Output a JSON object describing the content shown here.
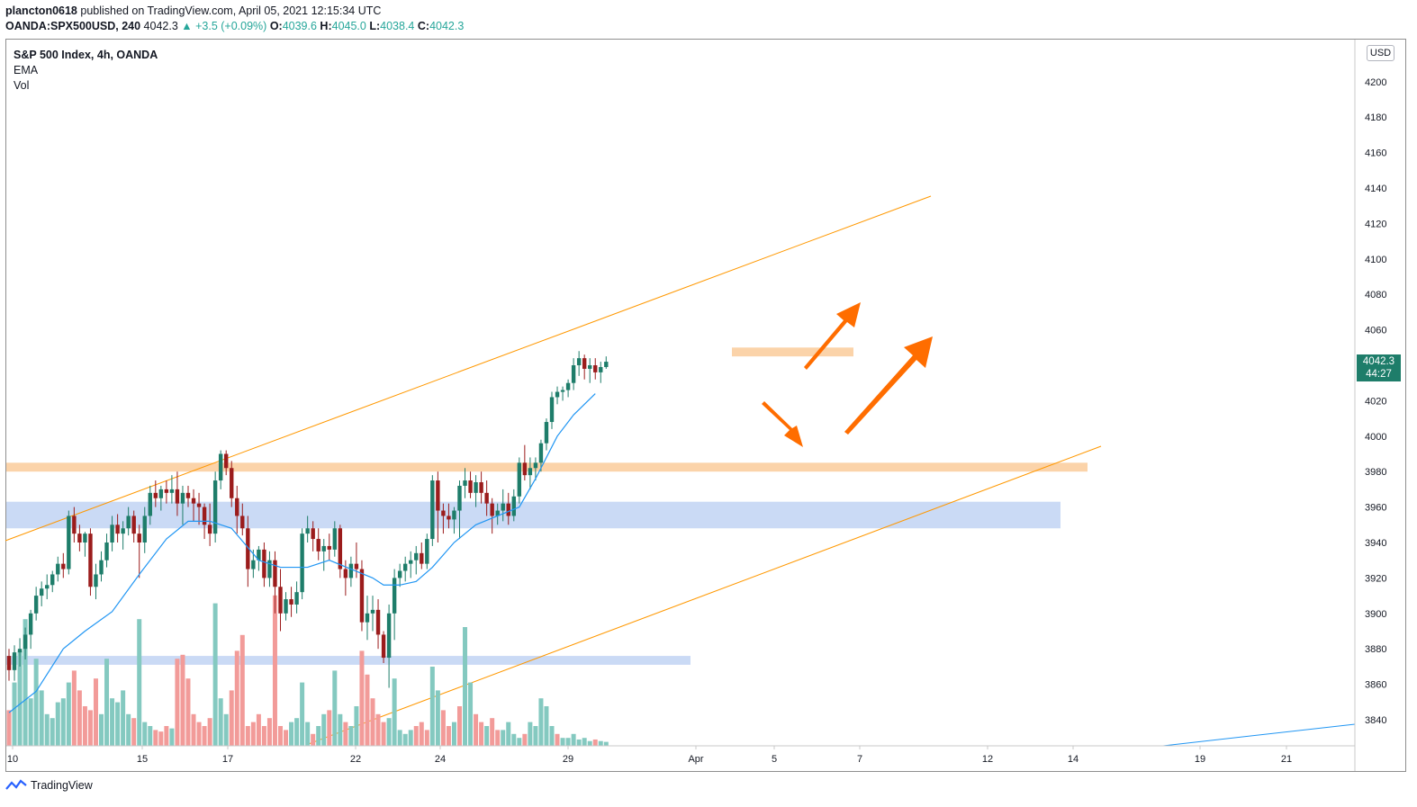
{
  "header": {
    "user": "plancton0618",
    "published_text": "published on TradingView.com, April 05, 2021 12:15:34 UTC",
    "symbol": "OANDA:SPX500USD, 240",
    "last": "4042.3",
    "change": "▲ +3.5 (+0.09%)",
    "o_label": "O:",
    "o": "4039.6",
    "h_label": "H:",
    "h": "4045.0",
    "l_label": "L:",
    "l": "4038.4",
    "c_label": "C:",
    "c": "4042.3"
  },
  "legend": {
    "title": "S&P 500 Index, 4h, OANDA",
    "ema": "EMA",
    "vol": "Vol"
  },
  "currency": "USD",
  "price_tag": {
    "price": "4042.3",
    "countdown": "44:27"
  },
  "footer": {
    "brand": "TradingView"
  },
  "colors": {
    "up": "#26a69a",
    "down": "#ef5350",
    "candle_up": "#1e7d6a",
    "candle_down": "#9b1c1c",
    "ema": "#2196f3",
    "trendline": "#ff9800",
    "arrow": "#ff6d00",
    "zone_orange": "#f9c48c",
    "zone_blue": "#adc6f0"
  },
  "chart_data": {
    "type": "candlestick",
    "ylim": [
      3830,
      4228
    ],
    "yticks": [
      3840,
      3860,
      3880,
      3900,
      3920,
      3940,
      3960,
      3980,
      4000,
      4020,
      4040,
      4060,
      4080,
      4100,
      4120,
      4140,
      4160,
      4180,
      4200
    ],
    "xticks": [
      "10",
      "15",
      "17",
      "22",
      "24",
      "29",
      "Apr",
      "5",
      "7",
      "12",
      "14",
      "19",
      "21"
    ],
    "ohlc": [
      [
        3876,
        3880,
        3862,
        3868
      ],
      [
        3868,
        3882,
        3862,
        3878
      ],
      [
        3878,
        3886,
        3870,
        3880
      ],
      [
        3880,
        3892,
        3874,
        3888
      ],
      [
        3888,
        3902,
        3880,
        3900
      ],
      [
        3900,
        3915,
        3896,
        3910
      ],
      [
        3910,
        3918,
        3904,
        3914
      ],
      [
        3914,
        3922,
        3908,
        3916
      ],
      [
        3916,
        3924,
        3912,
        3922
      ],
      [
        3922,
        3932,
        3918,
        3928
      ],
      [
        3928,
        3934,
        3920,
        3925
      ],
      [
        3925,
        3958,
        3922,
        3955
      ],
      [
        3955,
        3960,
        3940,
        3945
      ],
      [
        3945,
        3950,
        3935,
        3940
      ],
      [
        3940,
        3946,
        3932,
        3945
      ],
      [
        3945,
        3948,
        3910,
        3915
      ],
      [
        3915,
        3928,
        3908,
        3922
      ],
      [
        3922,
        3935,
        3918,
        3930
      ],
      [
        3930,
        3945,
        3926,
        3940
      ],
      [
        3940,
        3955,
        3935,
        3950
      ],
      [
        3950,
        3956,
        3940,
        3945
      ],
      [
        3945,
        3952,
        3936,
        3948
      ],
      [
        3948,
        3960,
        3944,
        3955
      ],
      [
        3955,
        3958,
        3940,
        3945
      ],
      [
        3945,
        3950,
        3920,
        3940
      ],
      [
        3940,
        3960,
        3934,
        3955
      ],
      [
        3955,
        3972,
        3950,
        3968
      ],
      [
        3968,
        3975,
        3960,
        3965
      ],
      [
        3965,
        3972,
        3958,
        3970
      ],
      [
        3970,
        3975,
        3962,
        3968
      ],
      [
        3968,
        3978,
        3962,
        3970
      ],
      [
        3970,
        3980,
        3955,
        3962
      ],
      [
        3962,
        3972,
        3950,
        3968
      ],
      [
        3968,
        3972,
        3960,
        3965
      ],
      [
        3965,
        3970,
        3952,
        3962
      ],
      [
        3962,
        3968,
        3950,
        3960
      ],
      [
        3960,
        3962,
        3942,
        3950
      ],
      [
        3950,
        3962,
        3938,
        3945
      ],
      [
        3945,
        3980,
        3940,
        3975
      ],
      [
        3975,
        3992,
        3970,
        3990
      ],
      [
        3990,
        3992,
        3978,
        3982
      ],
      [
        3982,
        3986,
        3960,
        3965
      ],
      [
        3965,
        3972,
        3945,
        3955
      ],
      [
        3955,
        3962,
        3944,
        3948
      ],
      [
        3948,
        3955,
        3915,
        3925
      ],
      [
        3925,
        3936,
        3920,
        3930
      ],
      [
        3930,
        3938,
        3924,
        3936
      ],
      [
        3936,
        3940,
        3915,
        3920
      ],
      [
        3920,
        3935,
        3915,
        3930
      ],
      [
        3930,
        3935,
        3900,
        3915
      ],
      [
        3915,
        3925,
        3890,
        3900
      ],
      [
        3900,
        3912,
        3896,
        3908
      ],
      [
        3908,
        3915,
        3898,
        3905
      ],
      [
        3905,
        3918,
        3900,
        3912
      ],
      [
        3912,
        3948,
        3908,
        3945
      ],
      [
        3945,
        3955,
        3940,
        3948
      ],
      [
        3948,
        3952,
        3935,
        3942
      ],
      [
        3942,
        3948,
        3930,
        3935
      ],
      [
        3935,
        3942,
        3924,
        3938
      ],
      [
        3938,
        3945,
        3930,
        3936
      ],
      [
        3936,
        3952,
        3932,
        3948
      ],
      [
        3948,
        3950,
        3920,
        3925
      ],
      [
        3925,
        3930,
        3910,
        3920
      ],
      [
        3920,
        3932,
        3915,
        3928
      ],
      [
        3928,
        3940,
        3920,
        3925
      ],
      [
        3925,
        3930,
        3890,
        3895
      ],
      [
        3895,
        3910,
        3885,
        3900
      ],
      [
        3900,
        3910,
        3890,
        3902
      ],
      [
        3902,
        3908,
        3880,
        3888
      ],
      [
        3888,
        3890,
        3872,
        3875
      ],
      [
        3875,
        3905,
        3858,
        3900
      ],
      [
        3900,
        3925,
        3885,
        3920
      ],
      [
        3920,
        3928,
        3915,
        3924
      ],
      [
        3924,
        3932,
        3918,
        3928
      ],
      [
        3928,
        3935,
        3920,
        3930
      ],
      [
        3930,
        3938,
        3922,
        3934
      ],
      [
        3934,
        3940,
        3925,
        3928
      ],
      [
        3928,
        3945,
        3925,
        3942
      ],
      [
        3942,
        3978,
        3938,
        3975
      ],
      [
        3975,
        3980,
        3940,
        3958
      ],
      [
        3958,
        3962,
        3945,
        3955
      ],
      [
        3955,
        3962,
        3948,
        3953
      ],
      [
        3953,
        3960,
        3945,
        3958
      ],
      [
        3958,
        3975,
        3942,
        3972
      ],
      [
        3972,
        3982,
        3965,
        3975
      ],
      [
        3975,
        3980,
        3965,
        3968
      ],
      [
        3968,
        3978,
        3960,
        3974
      ],
      [
        3974,
        3980,
        3962,
        3968
      ],
      [
        3968,
        3975,
        3955,
        3962
      ],
      [
        3962,
        3965,
        3945,
        3955
      ],
      [
        3955,
        3962,
        3950,
        3958
      ],
      [
        3958,
        3970,
        3952,
        3962
      ],
      [
        3962,
        3968,
        3950,
        3955
      ],
      [
        3955,
        3970,
        3952,
        3966
      ],
      [
        3966,
        3988,
        3962,
        3985
      ],
      [
        3985,
        3995,
        3975,
        3978
      ],
      [
        3978,
        3988,
        3970,
        3982
      ],
      [
        3982,
        3988,
        3975,
        3985
      ],
      [
        3985,
        3998,
        3980,
        3996
      ],
      [
        3996,
        4010,
        3992,
        4008
      ],
      [
        4008,
        4025,
        4004,
        4022
      ],
      [
        4022,
        4028,
        4018,
        4025
      ],
      [
        4025,
        4028,
        4020,
        4026
      ],
      [
        4026,
        4032,
        4022,
        4030
      ],
      [
        4030,
        4044,
        4026,
        4040
      ],
      [
        4040,
        4048,
        4034,
        4044
      ],
      [
        4044,
        4046,
        4032,
        4038
      ],
      [
        4038,
        4044,
        4030,
        4040
      ],
      [
        4040,
        4044,
        4032,
        4036
      ],
      [
        4036,
        4042,
        4030,
        4039
      ],
      [
        4039,
        4045,
        4038,
        4042
      ]
    ],
    "volume": [
      [
        45,
        1
      ],
      [
        80,
        0
      ],
      [
        120,
        0
      ],
      [
        160,
        0
      ],
      [
        60,
        0
      ],
      [
        110,
        0
      ],
      [
        70,
        0
      ],
      [
        40,
        0
      ],
      [
        35,
        0
      ],
      [
        55,
        0
      ],
      [
        60,
        0
      ],
      [
        80,
        0
      ],
      [
        95,
        1
      ],
      [
        70,
        1
      ],
      [
        50,
        1
      ],
      [
        45,
        1
      ],
      [
        85,
        1
      ],
      [
        40,
        0
      ],
      [
        110,
        0
      ],
      [
        60,
        0
      ],
      [
        55,
        0
      ],
      [
        70,
        0
      ],
      [
        40,
        0
      ],
      [
        35,
        1
      ],
      [
        160,
        0
      ],
      [
        30,
        0
      ],
      [
        25,
        0
      ],
      [
        20,
        1
      ],
      [
        18,
        1
      ],
      [
        25,
        1
      ],
      [
        22,
        0
      ],
      [
        110,
        1
      ],
      [
        115,
        1
      ],
      [
        85,
        1
      ],
      [
        40,
        1
      ],
      [
        30,
        1
      ],
      [
        25,
        1
      ],
      [
        35,
        1
      ],
      [
        180,
        0
      ],
      [
        60,
        0
      ],
      [
        40,
        0
      ],
      [
        70,
        1
      ],
      [
        120,
        1
      ],
      [
        140,
        1
      ],
      [
        25,
        1
      ],
      [
        30,
        1
      ],
      [
        40,
        1
      ],
      [
        25,
        1
      ],
      [
        35,
        1
      ],
      [
        190,
        1
      ],
      [
        25,
        1
      ],
      [
        20,
        1
      ],
      [
        30,
        0
      ],
      [
        35,
        0
      ],
      [
        80,
        0
      ],
      [
        30,
        0
      ],
      [
        15,
        1
      ],
      [
        25,
        0
      ],
      [
        40,
        0
      ],
      [
        45,
        1
      ],
      [
        95,
        0
      ],
      [
        40,
        0
      ],
      [
        30,
        1
      ],
      [
        25,
        0
      ],
      [
        50,
        0
      ],
      [
        120,
        1
      ],
      [
        90,
        1
      ],
      [
        60,
        1
      ],
      [
        40,
        1
      ],
      [
        30,
        1
      ],
      [
        35,
        0
      ],
      [
        85,
        0
      ],
      [
        20,
        0
      ],
      [
        15,
        0
      ],
      [
        20,
        0
      ],
      [
        25,
        1
      ],
      [
        30,
        1
      ],
      [
        20,
        1
      ],
      [
        100,
        0
      ],
      [
        70,
        0
      ],
      [
        45,
        1
      ],
      [
        25,
        1
      ],
      [
        30,
        0
      ],
      [
        50,
        1
      ],
      [
        150,
        0
      ],
      [
        80,
        0
      ],
      [
        40,
        1
      ],
      [
        30,
        1
      ],
      [
        25,
        0
      ],
      [
        35,
        1
      ],
      [
        20,
        1
      ],
      [
        20,
        0
      ],
      [
        30,
        0
      ],
      [
        15,
        0
      ],
      [
        10,
        0
      ],
      [
        15,
        1
      ],
      [
        30,
        0
      ],
      [
        25,
        0
      ],
      [
        60,
        0
      ],
      [
        50,
        0
      ],
      [
        25,
        0
      ],
      [
        15,
        1
      ],
      [
        10,
        0
      ],
      [
        10,
        0
      ],
      [
        15,
        0
      ],
      [
        8,
        0
      ],
      [
        10,
        0
      ],
      [
        6,
        0
      ],
      [
        8,
        1
      ],
      [
        6,
        0
      ],
      [
        5,
        0
      ]
    ],
    "ema": [
      [
        0,
        3844
      ],
      [
        5,
        3856
      ],
      [
        10,
        3880
      ],
      [
        14,
        3890
      ],
      [
        19,
        3901
      ],
      [
        24,
        3922
      ],
      [
        29,
        3942
      ],
      [
        33,
        3952
      ],
      [
        37,
        3952
      ],
      [
        41,
        3948
      ],
      [
        46,
        3930
      ],
      [
        50,
        3926
      ],
      [
        55,
        3926
      ],
      [
        59,
        3930
      ],
      [
        63,
        3925
      ],
      [
        67,
        3920
      ],
      [
        69,
        3916
      ],
      [
        72,
        3916
      ],
      [
        75,
        3918
      ],
      [
        78,
        3926
      ],
      [
        82,
        3940
      ],
      [
        86,
        3950
      ],
      [
        90,
        3955
      ],
      [
        94,
        3960
      ],
      [
        97,
        3976
      ],
      [
        101,
        4000
      ],
      [
        104,
        4012
      ],
      [
        108,
        4024
      ]
    ],
    "zones": [
      {
        "color": "orange",
        "y0": 3980,
        "y1": 3985,
        "x0": 0,
        "x1": 1201
      },
      {
        "color": "blue",
        "y0": 3948,
        "y1": 3963,
        "x0": 0,
        "x1": 1171
      },
      {
        "color": "blue",
        "y0": 3871,
        "y1": 3876,
        "x0": 0,
        "x1": 760
      },
      {
        "color": "orange",
        "y0": 4045,
        "y1": 4050,
        "x0": 806,
        "x1": 941
      }
    ]
  }
}
